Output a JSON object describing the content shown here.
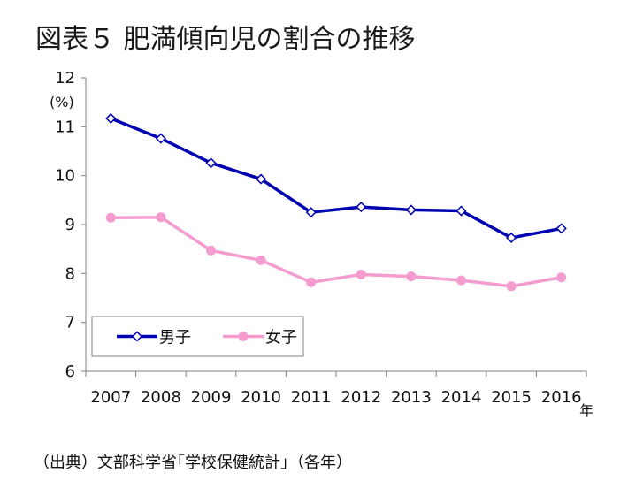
{
  "page": {
    "title": "図表５ 肥満傾向児の割合の推移",
    "source": "（出典）文部科学省｢学校保健統計｣（各年）"
  },
  "chart_data": {
    "type": "line",
    "title": "",
    "ylabel": "(%)",
    "xlabel": "年",
    "ylim": [
      6,
      12
    ],
    "yticks": [
      "6",
      "7",
      "8",
      "9",
      "10",
      "11",
      "12"
    ],
    "categories": [
      "2007",
      "2008",
      "2009",
      "2010",
      "2011",
      "2012",
      "2013",
      "2014",
      "2015",
      "2016"
    ],
    "grid": false,
    "legend_position": "lower-left",
    "series": [
      {
        "name": "男子",
        "color": "#0000b3",
        "marker": "diamond-open",
        "values": [
          11.17,
          10.76,
          10.26,
          9.93,
          9.25,
          9.36,
          9.3,
          9.28,
          8.73,
          8.92
        ]
      },
      {
        "name": "女子",
        "color": "#f39ccd",
        "marker": "circle-filled",
        "values": [
          9.14,
          9.15,
          8.47,
          8.27,
          7.82,
          7.98,
          7.94,
          7.86,
          7.74,
          7.92
        ]
      }
    ]
  }
}
